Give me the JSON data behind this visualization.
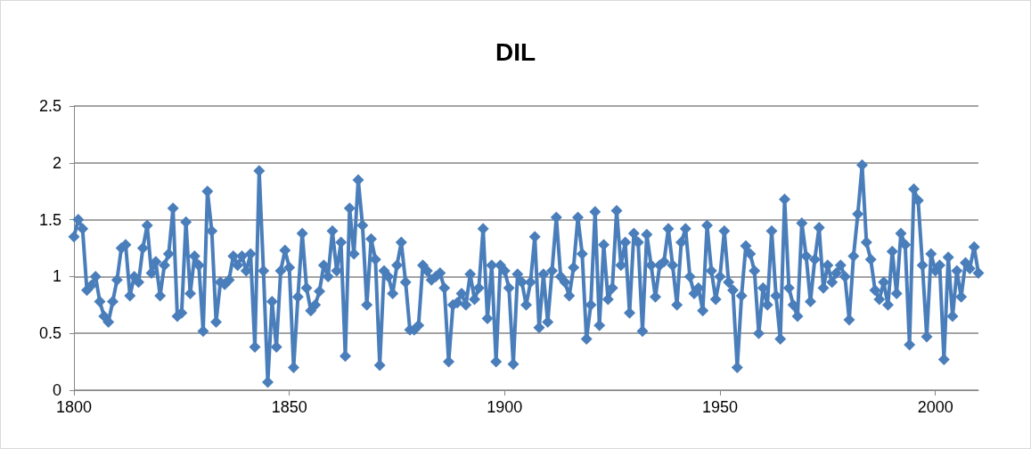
{
  "chart_data": {
    "type": "line",
    "title": "DIL",
    "xlim": [
      1800,
      2010
    ],
    "xticks": [
      1800,
      1850,
      1900,
      1950,
      2000
    ],
    "ylim": [
      0,
      2.5
    ],
    "yticks": [
      0,
      0.5,
      1,
      1.5,
      2,
      2.5
    ],
    "grid": "y",
    "marker": "diamond",
    "line_style": "solid",
    "x": [
      1800,
      1801,
      1802,
      1803,
      1804,
      1805,
      1806,
      1807,
      1808,
      1809,
      1810,
      1811,
      1812,
      1813,
      1814,
      1815,
      1816,
      1817,
      1818,
      1819,
      1820,
      1821,
      1822,
      1823,
      1824,
      1825,
      1826,
      1827,
      1828,
      1829,
      1830,
      1831,
      1832,
      1833,
      1834,
      1835,
      1836,
      1837,
      1838,
      1839,
      1840,
      1841,
      1842,
      1843,
      1844,
      1845,
      1846,
      1847,
      1848,
      1849,
      1850,
      1851,
      1852,
      1853,
      1854,
      1855,
      1856,
      1857,
      1858,
      1859,
      1860,
      1861,
      1862,
      1863,
      1864,
      1865,
      1866,
      1867,
      1868,
      1869,
      1870,
      1871,
      1872,
      1873,
      1874,
      1875,
      1876,
      1877,
      1878,
      1879,
      1880,
      1881,
      1882,
      1883,
      1884,
      1885,
      1886,
      1887,
      1888,
      1889,
      1890,
      1891,
      1892,
      1893,
      1894,
      1895,
      1896,
      1897,
      1898,
      1899,
      1900,
      1901,
      1902,
      1903,
      1904,
      1905,
      1906,
      1907,
      1908,
      1909,
      1910,
      1911,
      1912,
      1913,
      1914,
      1915,
      1916,
      1917,
      1918,
      1919,
      1920,
      1921,
      1922,
      1923,
      1924,
      1925,
      1926,
      1927,
      1928,
      1929,
      1930,
      1931,
      1932,
      1933,
      1934,
      1935,
      1936,
      1937,
      1938,
      1939,
      1940,
      1941,
      1942,
      1943,
      1944,
      1945,
      1946,
      1947,
      1948,
      1949,
      1950,
      1951,
      1952,
      1953,
      1954,
      1955,
      1956,
      1957,
      1958,
      1959,
      1960,
      1961,
      1962,
      1963,
      1964,
      1965,
      1966,
      1967,
      1968,
      1969,
      1970,
      1971,
      1972,
      1973,
      1974,
      1975,
      1976,
      1977,
      1978,
      1979,
      1980,
      1981,
      1982,
      1983,
      1984,
      1985,
      1986,
      1987,
      1988,
      1989,
      1990,
      1991,
      1992,
      1993,
      1994,
      1995,
      1996,
      1997,
      1998,
      1999,
      2000,
      2001,
      2002,
      2003,
      2004,
      2005,
      2006,
      2007,
      2008,
      2009,
      2010
    ],
    "series": [
      {
        "color": "#4a7ebb",
        "values": [
          1.35,
          1.5,
          1.42,
          0.88,
          0.92,
          1.0,
          0.78,
          0.65,
          0.6,
          0.78,
          0.97,
          1.25,
          1.28,
          0.83,
          1.0,
          0.95,
          1.25,
          1.45,
          1.03,
          1.13,
          0.83,
          1.1,
          1.2,
          1.6,
          0.65,
          0.68,
          1.48,
          0.85,
          1.18,
          1.1,
          0.52,
          1.75,
          1.4,
          0.6,
          0.95,
          0.93,
          0.97,
          1.18,
          1.1,
          1.18,
          1.05,
          1.2,
          0.38,
          1.93,
          1.05,
          0.07,
          0.78,
          0.38,
          1.05,
          1.23,
          1.08,
          0.2,
          0.82,
          1.38,
          0.9,
          0.7,
          0.75,
          0.87,
          1.1,
          1.0,
          1.4,
          1.05,
          1.3,
          0.3,
          1.6,
          1.2,
          1.85,
          1.45,
          0.75,
          1.33,
          1.15,
          0.22,
          1.05,
          1.0,
          0.85,
          1.1,
          1.3,
          0.95,
          0.53,
          0.53,
          0.57,
          1.1,
          1.05,
          0.97,
          1.0,
          1.03,
          0.9,
          0.25,
          0.75,
          0.77,
          0.85,
          0.75,
          1.02,
          0.8,
          0.9,
          1.42,
          0.63,
          1.1,
          0.25,
          1.1,
          1.05,
          0.9,
          0.23,
          1.02,
          0.95,
          0.75,
          0.95,
          1.35,
          0.55,
          1.02,
          0.6,
          1.05,
          1.52,
          1.0,
          0.95,
          0.83,
          1.08,
          1.52,
          1.2,
          0.45,
          0.75,
          1.57,
          0.57,
          1.28,
          0.8,
          0.9,
          1.58,
          1.1,
          1.3,
          0.68,
          1.38,
          1.3,
          0.52,
          1.37,
          1.1,
          0.82,
          1.1,
          1.13,
          1.42,
          1.1,
          0.75,
          1.3,
          1.42,
          1.0,
          0.85,
          0.9,
          0.7,
          1.45,
          1.05,
          0.8,
          1.0,
          1.4,
          0.95,
          0.88,
          0.2,
          0.83,
          1.27,
          1.2,
          1.05,
          0.5,
          0.9,
          0.75,
          1.4,
          0.83,
          0.45,
          1.68,
          0.9,
          0.75,
          0.65,
          1.47,
          1.18,
          0.78,
          1.15,
          1.43,
          0.9,
          1.1,
          0.95,
          1.03,
          1.1,
          1.0,
          0.62,
          1.18,
          1.55,
          1.98,
          1.3,
          1.15,
          0.88,
          0.8,
          0.95,
          0.75,
          1.22,
          0.85,
          1.38,
          1.28,
          0.4,
          1.77,
          1.67,
          1.1,
          0.47,
          1.2,
          1.05,
          1.1,
          0.27,
          1.17,
          0.65,
          1.05,
          0.82,
          1.12,
          1.07,
          1.26,
          1.03
        ]
      }
    ]
  }
}
